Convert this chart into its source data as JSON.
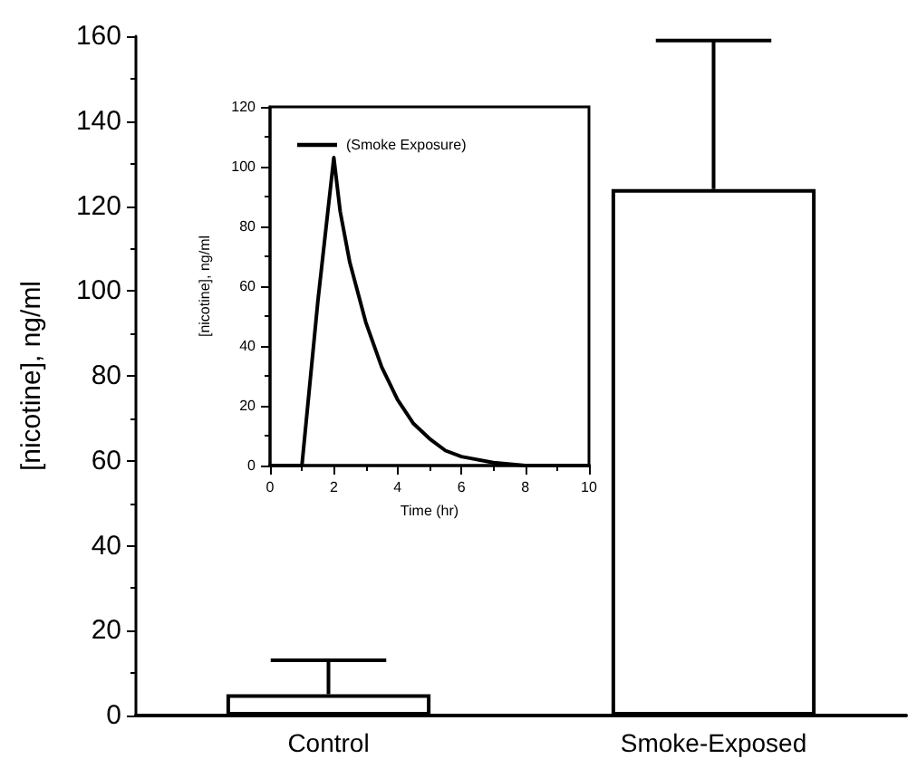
{
  "chart_data": [
    {
      "type": "bar",
      "ylabel": "[nicotine], ng/ml",
      "categories": [
        "Control",
        "Smoke-Exposed"
      ],
      "series": [
        {
          "color": "#ffffff",
          "values": [
            5,
            124
          ],
          "errors": [
            [
              5,
              13
            ],
            [
              124,
              159
            ]
          ]
        }
      ],
      "ylim": [
        0,
        160
      ],
      "yticks": [
        0,
        20,
        40,
        60,
        80,
        100,
        120,
        140,
        160
      ],
      "grid": false,
      "legend": false
    },
    {
      "type": "line",
      "xlabel": "Time (hr)",
      "ylabel": "[nicotine], ng/ml",
      "series": [
        {
          "name": "(Smoke Exposure)",
          "color": "#000000",
          "x": [
            0,
            1,
            1.5,
            2,
            2.2,
            2.5,
            3,
            3.5,
            4,
            4.5,
            5,
            5.5,
            6,
            7,
            8,
            10
          ],
          "values": [
            0,
            0,
            55,
            103,
            85,
            68,
            48,
            33,
            22,
            14,
            9,
            5,
            3,
            1,
            0,
            0
          ]
        }
      ],
      "xlim": [
        0,
        10
      ],
      "xticks": [
        0,
        2,
        4,
        6,
        8,
        10
      ],
      "ylim": [
        0,
        120
      ],
      "yticks": [
        0,
        20,
        40,
        60,
        80,
        100,
        120
      ],
      "grid": false,
      "legend": "top left",
      "marker": "none",
      "line_style": "solid"
    }
  ]
}
